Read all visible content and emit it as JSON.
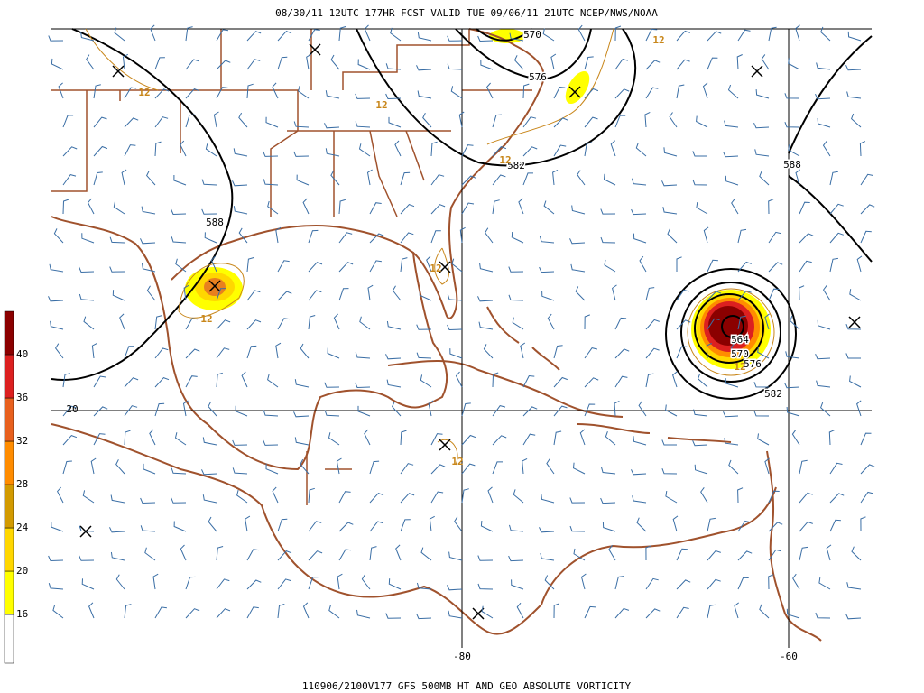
{
  "header": {
    "title": "08/30/11 12UTC  177HR  FCST VALID TUE 09/06/11 21UTC  NCEP/NWS/NOAA"
  },
  "footer": {
    "caption": "110906/2100V177 GFS 500MB HT AND GEO ABSOLUTE VORTICITY"
  },
  "map": {
    "lat_labels": [
      "20"
    ],
    "lon_labels": [
      "-80",
      "-60"
    ],
    "height_labels": [
      "570",
      "576",
      "582",
      "588",
      "588",
      "564",
      "570",
      "576",
      "582"
    ],
    "vorticity_labels": [
      "12",
      "12",
      "12",
      "12",
      "12",
      "12",
      "12",
      "12"
    ]
  },
  "colorbar": {
    "labels": [
      "16",
      "20",
      "24",
      "28",
      "32",
      "36",
      "40"
    ],
    "colors": [
      "#ffffff",
      "#ffff00",
      "#ffd700",
      "#d29a00",
      "#ff8c00",
      "#e8601e",
      "#dc2020",
      "#8b0000"
    ]
  }
}
